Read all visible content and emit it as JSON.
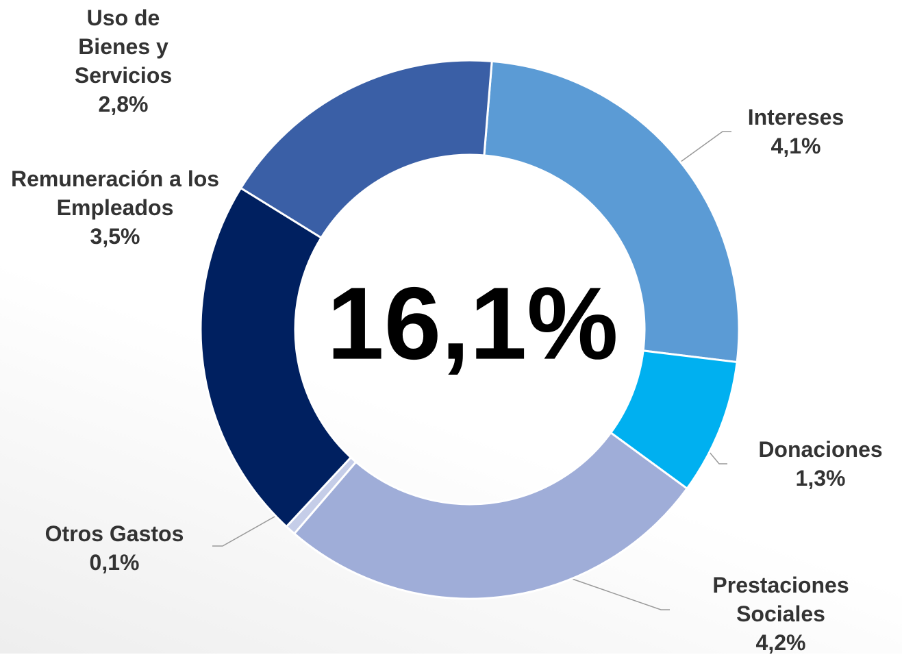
{
  "chart_data": {
    "type": "donut",
    "center_label": "16,1%",
    "categories": [
      "Intereses",
      "Donaciones",
      "Prestaciones Sociales",
      "Otros Gastos",
      "Remuneración a los Empleados",
      "Uso de Bienes y Servicios"
    ],
    "values": [
      4.1,
      1.3,
      4.2,
      0.1,
      3.5,
      2.8
    ],
    "value_labels": [
      "4,1%",
      "1,3%",
      "4,2%",
      "0,1%",
      "3,5%",
      "2,8%"
    ],
    "colors": [
      "#5b9bd5",
      "#00b0f0",
      "#9fadd8",
      "#c5cde8",
      "#002060",
      "#3a5fa6"
    ]
  }
}
